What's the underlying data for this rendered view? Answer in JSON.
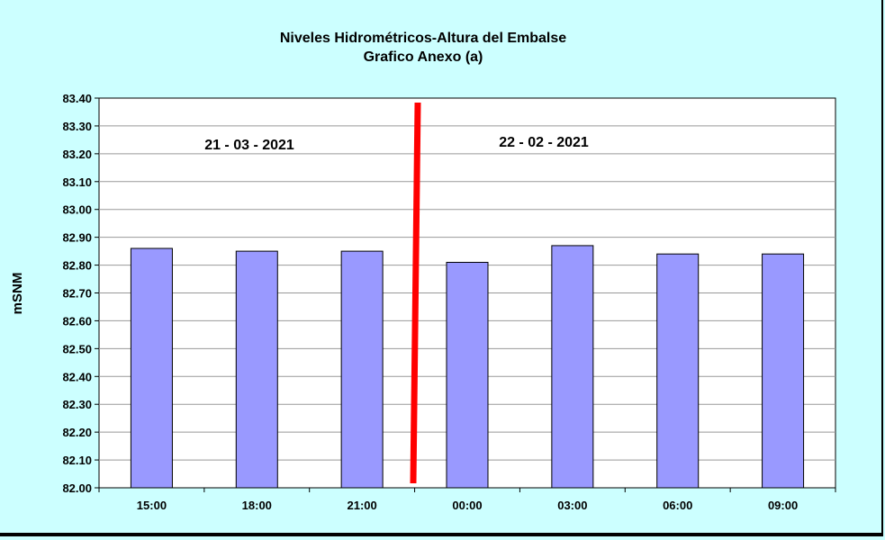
{
  "chart_data": {
    "type": "bar",
    "title": "Niveles Hidrométricos-Altura del Embalse",
    "subtitle": "Grafico Anexo (a)",
    "xlabel": "",
    "ylabel": "mSNM",
    "categories": [
      "15:00",
      "18:00",
      "21:00",
      "00:00",
      "03:00",
      "06:00",
      "09:00"
    ],
    "values": [
      82.86,
      82.85,
      82.85,
      82.81,
      82.87,
      82.84,
      82.84
    ],
    "ylim": [
      82.0,
      83.4
    ],
    "yticks": [
      "82.00",
      "82.10",
      "82.20",
      "82.30",
      "82.40",
      "82.50",
      "82.60",
      "82.70",
      "82.80",
      "82.90",
      "83.00",
      "83.10",
      "83.20",
      "83.30",
      "83.40"
    ],
    "grid": true,
    "annotations": [
      "21 - 03 - 2021",
      "22 - 02 - 2021"
    ],
    "colors": {
      "background": "#ccffff",
      "plot_area": "#ffffff",
      "bar": "#9999ff",
      "divider": "#ff0000"
    }
  }
}
